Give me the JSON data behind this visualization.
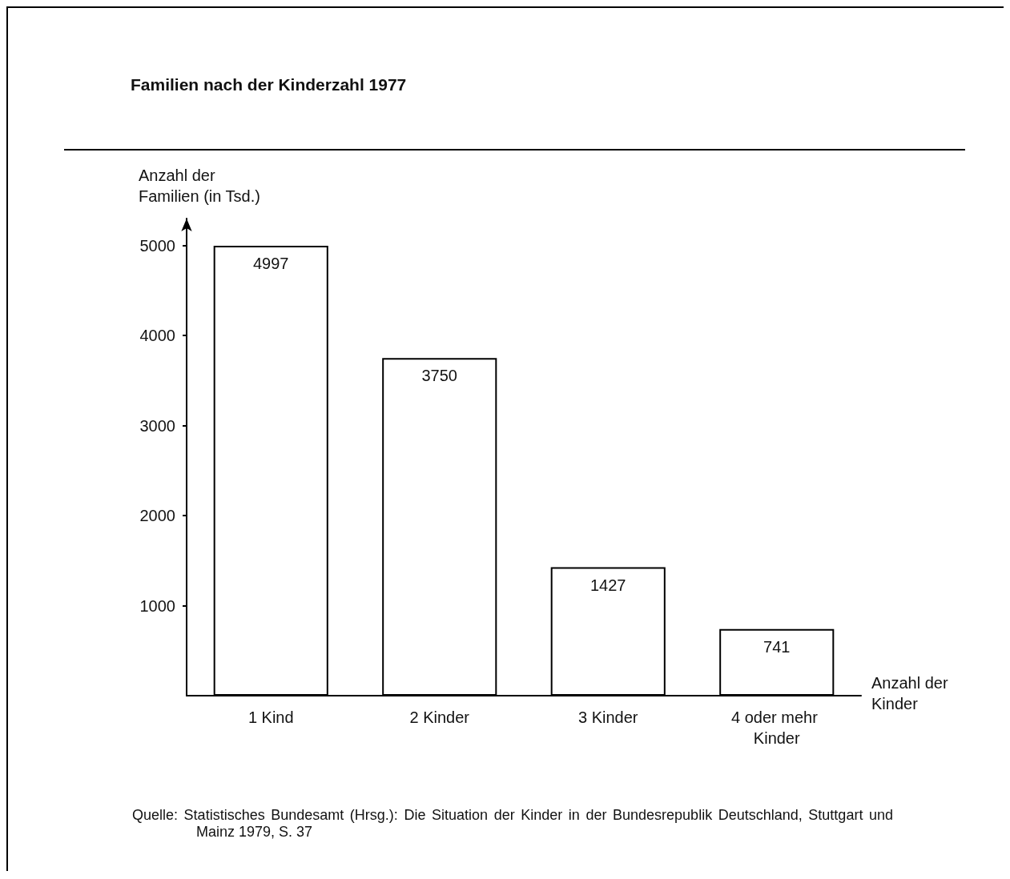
{
  "chart_data": {
    "type": "bar",
    "title": "Familien nach der Kinderzahl 1977",
    "categories": [
      "1 Kind",
      "2 Kinder",
      "3 Kinder",
      "4 oder mehr Kinder"
    ],
    "values": [
      4997,
      3750,
      1427,
      741
    ],
    "color": "#ffffff",
    "ylabel": "Anzahl der Familien (in Tsd.)",
    "xlabel": "Anzahl der Kinder",
    "ylim": [
      0,
      5300
    ],
    "yticks": [
      1000,
      2000,
      3000,
      4000,
      5000
    ],
    "data_labels": true,
    "grid": false,
    "annotations": [
      "Quelle: Statistisches Bundesamt (Hrsg.): Die Situation der Kinder in der Bundesrepublik Deutschland, Stuttgart und Mainz 1979, S. 37"
    ]
  }
}
